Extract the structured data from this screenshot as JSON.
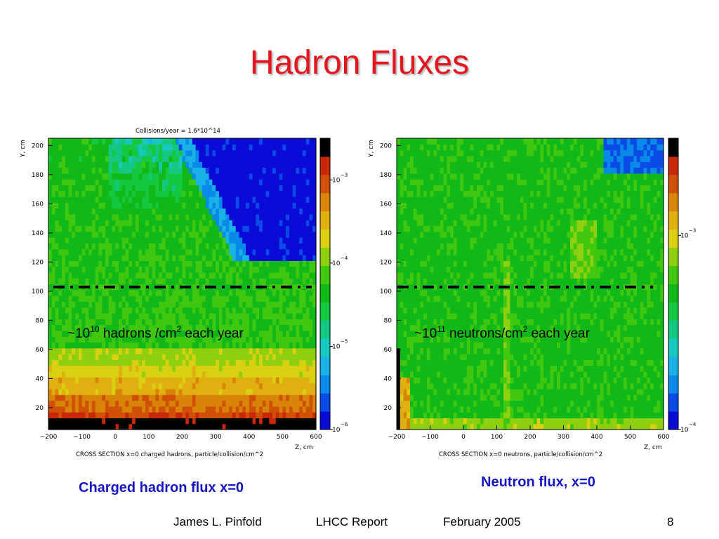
{
  "slide": {
    "title": "Hadron Fluxes",
    "footer_author": "James L. Pinfold",
    "footer_report": "LHCC Report",
    "footer_date": "February 2005",
    "page_number": "8"
  },
  "colors": {
    "title": "#e8141e",
    "caption": "#1515c8",
    "palette": [
      "#0b0bd8",
      "#0a4ae6",
      "#0a8ae8",
      "#1ab2e6",
      "#16c8c0",
      "#14c884",
      "#14c840",
      "#10b818",
      "#40c810",
      "#8ed010",
      "#d8d010",
      "#e0b010",
      "#d88408",
      "#d05008",
      "#c82808",
      "#000000"
    ]
  },
  "chart_data": [
    {
      "type": "heatmap",
      "title": "Collisions/year = 1.6*10^14",
      "xlabel": "CROSS SECTION x=0 charged hadrons, particle/collision/cm^2",
      "x_axis_unit": "Z, cm",
      "ylabel": "Y, cm",
      "xlim": [
        -200,
        600
      ],
      "ylim": [
        5,
        205
      ],
      "x_ticks": [
        -200,
        -100,
        0,
        100,
        200,
        300,
        400,
        500,
        600
      ],
      "y_ticks": [
        20,
        40,
        60,
        80,
        100,
        120,
        140,
        160,
        180,
        200
      ],
      "colorbar": {
        "type": "log",
        "min_exp": -6,
        "max_exp": -2.5,
        "labeled_exponents": [
          -3,
          -4,
          -5,
          -6
        ]
      },
      "line": {
        "y": 100,
        "style": "dash-dot"
      },
      "annotation": "~10^10 hadrons /cm^2 each year",
      "caption": "Charged hadron flux  x=0"
    },
    {
      "type": "heatmap",
      "title": "",
      "xlabel": "CROSS SECTION x=0 neutrons, particle/collision/cm^2",
      "x_axis_unit": "Z, cm",
      "ylabel": "Y, cm",
      "xlim": [
        -200,
        600
      ],
      "ylim": [
        5,
        205
      ],
      "x_ticks": [
        -200,
        -100,
        0,
        100,
        200,
        300,
        400,
        500,
        600
      ],
      "y_ticks": [
        20,
        40,
        60,
        80,
        100,
        120,
        140,
        160,
        180,
        200
      ],
      "colorbar": {
        "type": "log",
        "min_exp": -4,
        "max_exp": -2.5,
        "labeled_exponents": [
          -3,
          -4
        ]
      },
      "line": {
        "y": 100,
        "style": "dash-dot"
      },
      "annotation": "~10^11 neutrons/cm^2 each year",
      "caption": "Neutron flux, x=0"
    }
  ]
}
